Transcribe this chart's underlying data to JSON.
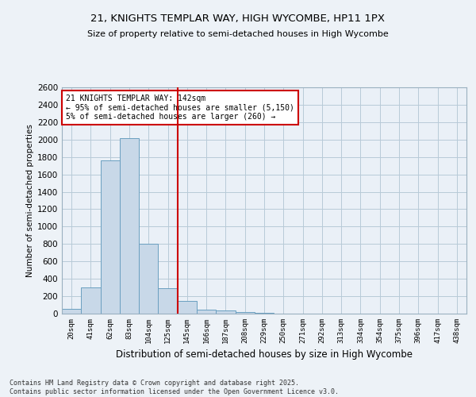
{
  "title1": "21, KNIGHTS TEMPLAR WAY, HIGH WYCOMBE, HP11 1PX",
  "title2": "Size of property relative to semi-detached houses in High Wycombe",
  "xlabel": "Distribution of semi-detached houses by size in High Wycombe",
  "ylabel": "Number of semi-detached properties",
  "categories": [
    "20sqm",
    "41sqm",
    "62sqm",
    "83sqm",
    "104sqm",
    "125sqm",
    "145sqm",
    "166sqm",
    "187sqm",
    "208sqm",
    "229sqm",
    "250sqm",
    "271sqm",
    "292sqm",
    "313sqm",
    "334sqm",
    "354sqm",
    "375sqm",
    "396sqm",
    "417sqm",
    "438sqm"
  ],
  "values": [
    55,
    300,
    1760,
    2020,
    800,
    290,
    150,
    42,
    32,
    18,
    5,
    2,
    1,
    1,
    0,
    0,
    0,
    0,
    0,
    0,
    0
  ],
  "bar_color": "#c8d8e8",
  "bar_edge_color": "#6a9fc0",
  "vline_index": 6,
  "vline_color": "#cc0000",
  "annotation_text": "21 KNIGHTS TEMPLAR WAY: 142sqm\n← 95% of semi-detached houses are smaller (5,150)\n5% of semi-detached houses are larger (260) →",
  "annotation_box_color": "#cc0000",
  "ylim": [
    0,
    2600
  ],
  "yticks": [
    0,
    200,
    400,
    600,
    800,
    1000,
    1200,
    1400,
    1600,
    1800,
    2000,
    2200,
    2400,
    2600
  ],
  "footnote": "Contains HM Land Registry data © Crown copyright and database right 2025.\nContains public sector information licensed under the Open Government Licence v3.0.",
  "bg_color": "#edf2f7",
  "plot_bg_color": "#eaf0f7",
  "grid_color": "#b8cad8"
}
